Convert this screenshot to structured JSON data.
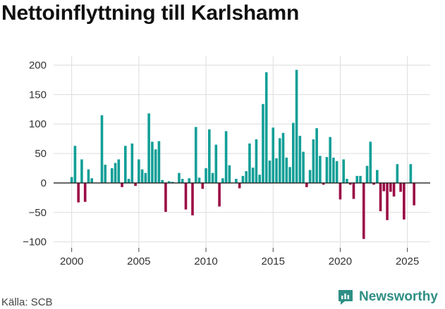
{
  "title": "Nettoinflyttning till Karlshamn",
  "source": "Källa: SCB",
  "brand": {
    "name": "Newsworthy",
    "color": "#2f8f85"
  },
  "colors": {
    "positive": "#119f97",
    "negative": "#9b0a44",
    "grid": "#dddddd",
    "zero": "#222222"
  },
  "chart_data": {
    "type": "bar",
    "title": "Nettoinflyttning till Karlshamn",
    "xlabel": "",
    "ylabel": "",
    "xlim": [
      1998.6,
      2026.7
    ],
    "ylim": [
      -110,
      215
    ],
    "yticks": [
      200,
      150,
      100,
      50,
      0,
      -50,
      -100
    ],
    "ytick_labels": [
      "200",
      "150",
      "100",
      "50",
      "0",
      "−50",
      "−100"
    ],
    "xticks": [
      2000,
      2005,
      2010,
      2015,
      2020,
      2025
    ],
    "grid": true,
    "legend": "none",
    "x": [
      2000.0,
      2000.25,
      2000.5,
      2000.75,
      2001.0,
      2001.25,
      2001.5,
      2001.75,
      2002.0,
      2002.25,
      2002.5,
      2002.75,
      2003.0,
      2003.25,
      2003.5,
      2003.75,
      2004.0,
      2004.25,
      2004.5,
      2004.75,
      2005.0,
      2005.25,
      2005.5,
      2005.75,
      2006.0,
      2006.25,
      2006.5,
      2006.75,
      2007.0,
      2007.25,
      2007.5,
      2007.75,
      2008.0,
      2008.25,
      2008.5,
      2008.75,
      2009.0,
      2009.25,
      2009.5,
      2009.75,
      2010.0,
      2010.25,
      2010.5,
      2010.75,
      2011.0,
      2011.25,
      2011.5,
      2011.75,
      2012.0,
      2012.25,
      2012.5,
      2012.75,
      2013.0,
      2013.25,
      2013.5,
      2013.75,
      2014.0,
      2014.25,
      2014.5,
      2014.75,
      2015.0,
      2015.25,
      2015.5,
      2015.75,
      2016.0,
      2016.25,
      2016.5,
      2016.75,
      2017.0,
      2017.25,
      2017.5,
      2017.75,
      2018.0,
      2018.25,
      2018.5,
      2018.75,
      2019.0,
      2019.25,
      2019.5,
      2019.75,
      2020.0,
      2020.25,
      2020.5,
      2020.75,
      2021.0,
      2021.25,
      2021.5,
      2021.75,
      2022.0,
      2022.25,
      2022.5,
      2022.75,
      2023.0,
      2023.25,
      2023.5,
      2023.75,
      2024.0,
      2024.25,
      2024.5,
      2024.75,
      2025.0,
      2025.25,
      2025.5
    ],
    "values": [
      10,
      63,
      -33,
      40,
      -32,
      23,
      8,
      0,
      0,
      115,
      31,
      0,
      25,
      34,
      40,
      -7,
      63,
      7,
      67,
      -5,
      40,
      23,
      17,
      118,
      70,
      57,
      71,
      5,
      -49,
      3,
      2,
      0,
      17,
      7,
      -45,
      8,
      -55,
      95,
      9,
      -10,
      25,
      91,
      17,
      65,
      -40,
      8,
      88,
      30,
      0,
      7,
      -9,
      12,
      20,
      67,
      26,
      74,
      14,
      134,
      188,
      38,
      94,
      42,
      76,
      85,
      43,
      27,
      102,
      192,
      80,
      53,
      -7,
      22,
      74,
      93,
      46,
      -3,
      44,
      78,
      43,
      37,
      -28,
      40,
      7,
      -3,
      -27,
      12,
      12,
      -95,
      29,
      70,
      -3,
      22,
      -48,
      -14,
      -63,
      -15,
      -23,
      32,
      -15,
      -62,
      0,
      32,
      -38
    ]
  }
}
